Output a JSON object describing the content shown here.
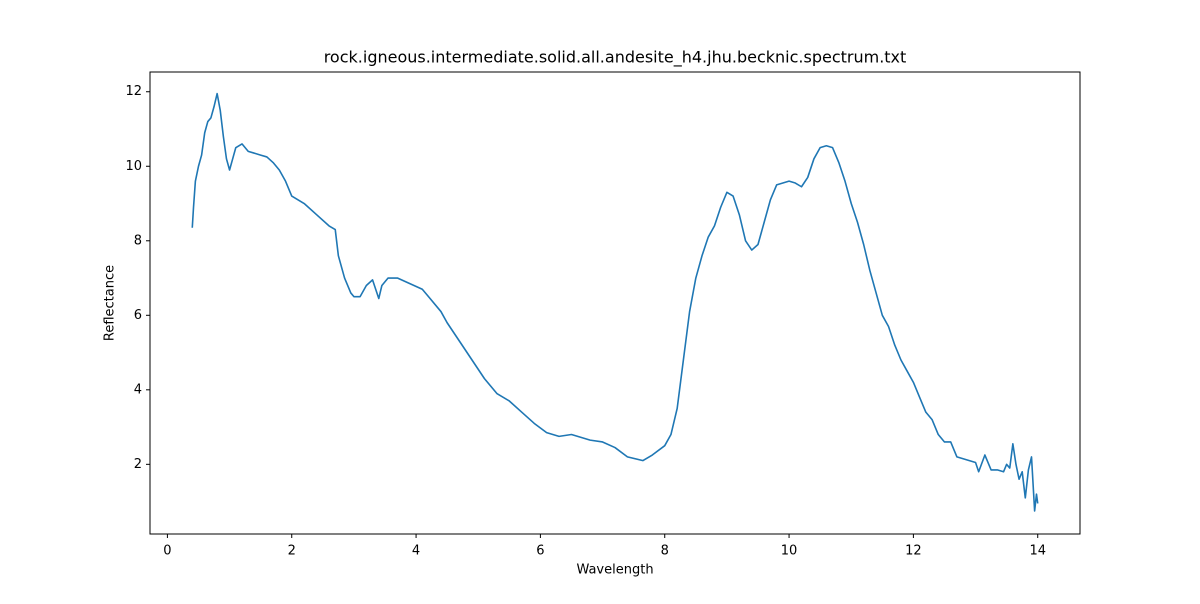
{
  "chart_data": {
    "type": "line",
    "title": "rock.igneous.intermediate.solid.all.andesite_h4.jhu.becknic.spectrum.txt",
    "x_label": "Wavelength",
    "y_label": "Reflectance",
    "color": "#1f77b4",
    "x": [
      0.4,
      0.42,
      0.45,
      0.5,
      0.55,
      0.6,
      0.65,
      0.7,
      0.75,
      0.8,
      0.85,
      0.9,
      0.95,
      1.0,
      1.05,
      1.1,
      1.2,
      1.3,
      1.5,
      1.6,
      1.7,
      1.8,
      1.9,
      2.0,
      2.2,
      2.4,
      2.6,
      2.7,
      2.75,
      2.85,
      2.95,
      3.0,
      3.1,
      3.2,
      3.3,
      3.4,
      3.45,
      3.55,
      3.7,
      3.9,
      4.1,
      4.2,
      4.4,
      4.5,
      4.7,
      4.9,
      5.1,
      5.3,
      5.5,
      5.7,
      5.9,
      6.1,
      6.3,
      6.5,
      6.8,
      7.0,
      7.2,
      7.4,
      7.65,
      7.8,
      8.0,
      8.1,
      8.2,
      8.3,
      8.4,
      8.5,
      8.6,
      8.7,
      8.8,
      8.9,
      9.0,
      9.1,
      9.2,
      9.3,
      9.4,
      9.5,
      9.6,
      9.7,
      9.8,
      9.9,
      10.0,
      10.1,
      10.2,
      10.3,
      10.4,
      10.5,
      10.6,
      10.7,
      10.8,
      10.9,
      11.0,
      11.1,
      11.2,
      11.3,
      11.4,
      11.5,
      11.6,
      11.7,
      11.8,
      11.9,
      12.0,
      12.1,
      12.2,
      12.3,
      12.4,
      12.5,
      12.6,
      12.7,
      12.8,
      12.9,
      13.0,
      13.05,
      13.15,
      13.25,
      13.35,
      13.45,
      13.5,
      13.55,
      13.6,
      13.65,
      13.7,
      13.75,
      13.8,
      13.85,
      13.9,
      13.95,
      13.98,
      14.0
    ],
    "values": [
      8.35,
      8.9,
      9.6,
      10.0,
      10.3,
      10.9,
      11.2,
      11.3,
      11.6,
      11.95,
      11.5,
      10.8,
      10.2,
      9.9,
      10.2,
      10.5,
      10.6,
      10.4,
      10.3,
      10.25,
      10.1,
      9.9,
      9.6,
      9.2,
      9.0,
      8.7,
      8.4,
      8.3,
      7.6,
      7.0,
      6.6,
      6.5,
      6.5,
      6.8,
      6.95,
      6.45,
      6.8,
      7.0,
      7.0,
      6.85,
      6.7,
      6.5,
      6.1,
      5.8,
      5.3,
      4.8,
      4.3,
      3.9,
      3.7,
      3.4,
      3.1,
      2.85,
      2.75,
      2.8,
      2.65,
      2.6,
      2.45,
      2.2,
      2.1,
      2.25,
      2.5,
      2.8,
      3.5,
      4.8,
      6.1,
      7.0,
      7.6,
      8.1,
      8.4,
      8.9,
      9.3,
      9.2,
      8.7,
      8.0,
      7.75,
      7.9,
      8.5,
      9.1,
      9.5,
      9.55,
      9.6,
      9.55,
      9.45,
      9.7,
      10.2,
      10.5,
      10.55,
      10.5,
      10.1,
      9.6,
      9.0,
      8.5,
      7.9,
      7.2,
      6.6,
      6.0,
      5.7,
      5.2,
      4.8,
      4.5,
      4.2,
      3.8,
      3.4,
      3.2,
      2.8,
      2.6,
      2.6,
      2.2,
      2.15,
      2.1,
      2.05,
      1.8,
      2.25,
      1.85,
      1.85,
      1.8,
      2.0,
      1.9,
      2.55,
      2.0,
      1.6,
      1.8,
      1.1,
      1.85,
      2.2,
      0.75,
      1.2,
      0.95
    ],
    "xlim": [
      -0.28,
      14.68
    ],
    "ylim": [
      0.13,
      12.53
    ],
    "xticks": [
      0,
      2,
      4,
      6,
      8,
      10,
      12,
      14
    ],
    "yticks": [
      2,
      4,
      6,
      8,
      10,
      12
    ]
  }
}
